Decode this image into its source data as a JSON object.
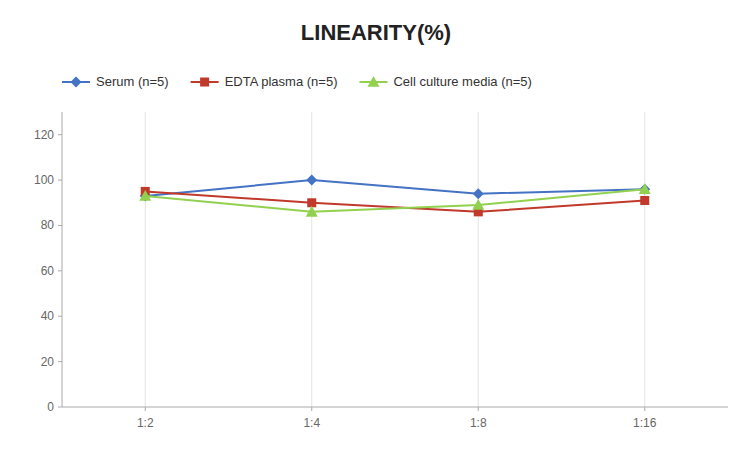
{
  "chart_data": {
    "type": "line",
    "title": "LINEARITY(%)",
    "categories": [
      "1:2",
      "1:4",
      "1:8",
      "1:16"
    ],
    "series": [
      {
        "name": "Serum (n=5)",
        "color": "#4472C4",
        "marker": "diamond",
        "values": [
          93,
          100,
          94,
          96
        ]
      },
      {
        "name": "EDTA plasma (n=5)",
        "color": "#C0392B",
        "marker": "square",
        "values": [
          95,
          90,
          86,
          91
        ]
      },
      {
        "name": "Cell culture media (n=5)",
        "color": "#92D050",
        "marker": "triangle",
        "values": [
          93,
          86,
          89,
          96
        ]
      }
    ],
    "ylim": [
      0,
      130
    ],
    "yticks": [
      0,
      20,
      40,
      60,
      80,
      100,
      120
    ],
    "grid": "x",
    "legend": "top"
  }
}
